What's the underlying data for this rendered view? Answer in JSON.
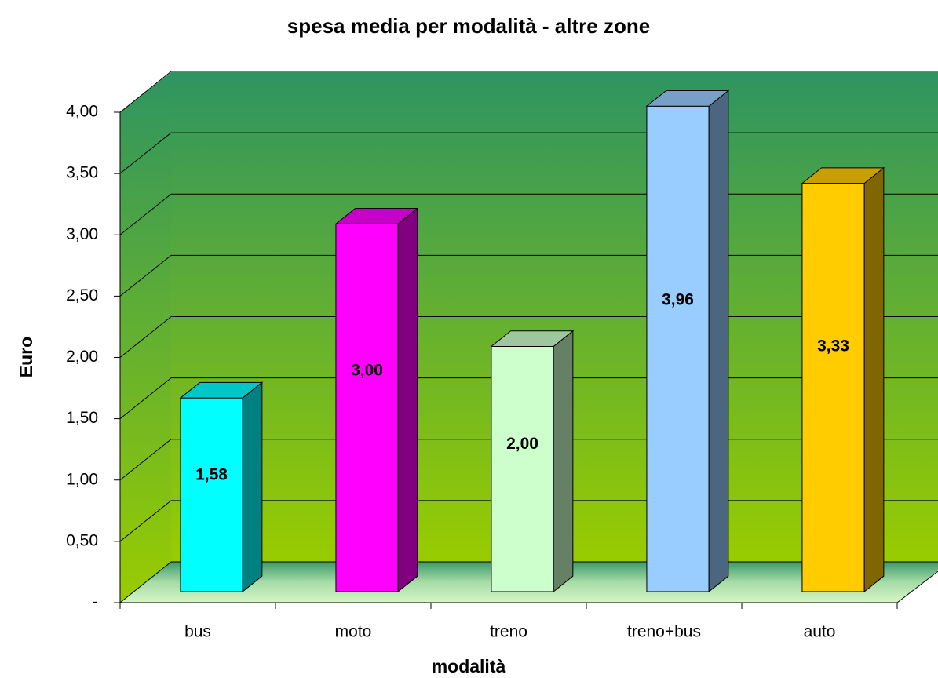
{
  "chart_data": {
    "type": "bar3d",
    "title": "spesa media per modalità - altre zone",
    "x_label": "modalità",
    "y_label": "Euro",
    "categories": [
      "bus",
      "moto",
      "treno",
      "treno+bus",
      "auto"
    ],
    "values": [
      1.58,
      3.0,
      2.0,
      3.96,
      3.33
    ],
    "value_labels": [
      "1,58",
      "3,00",
      "2,00",
      "3,96",
      "3,33"
    ],
    "colors": [
      "#00ffff",
      "#ff00ff",
      "#ccffcc",
      "#99ccff",
      "#ffcc00"
    ],
    "ylim": [
      0,
      4
    ],
    "yticks": [
      {
        "value": 0,
        "label": "-"
      },
      {
        "value": 0.5,
        "label": "0,50"
      },
      {
        "value": 1,
        "label": "1,00"
      },
      {
        "value": 1.5,
        "label": "1,50"
      },
      {
        "value": 2,
        "label": "2,00"
      },
      {
        "value": 2.5,
        "label": "2,50"
      },
      {
        "value": 3,
        "label": "3,00"
      },
      {
        "value": 3.5,
        "label": "3,50"
      },
      {
        "value": 4,
        "label": "4,00"
      }
    ],
    "grid": true
  }
}
